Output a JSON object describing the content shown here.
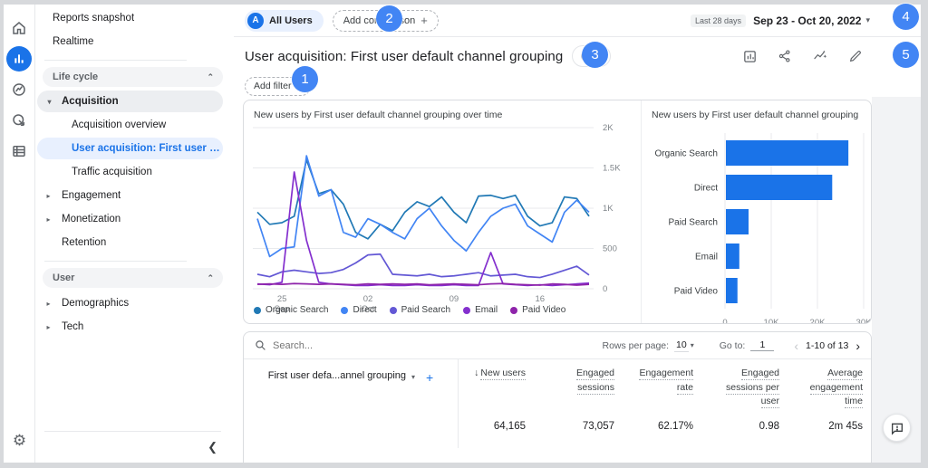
{
  "colors": {
    "accent": "#1a73e8",
    "badge": "#4285f4",
    "bar_fill": "#1a73e8",
    "grid": "#e8eaed",
    "axis_label": "#80868b",
    "series": {
      "Organic Search": "#2179b5",
      "Direct": "#4285f4",
      "Paid Search": "#6358d5",
      "Email": "#8430ce",
      "Paid Video": "#8e24aa"
    }
  },
  "icons": {
    "caret_down": "▾",
    "caret_right": "▸",
    "chevron_up": "⌃",
    "chevron_left": "‹",
    "chevron_right": "›",
    "collapse_left": "❮",
    "plus": "+",
    "sort_desc": "↓",
    "gear": "⚙",
    "feedback_mark": "!"
  },
  "rail": {
    "items": [
      {
        "name": "home",
        "active": false
      },
      {
        "name": "reports",
        "active": true
      },
      {
        "name": "explore",
        "active": false
      },
      {
        "name": "advertising",
        "active": false
      },
      {
        "name": "library",
        "active": false
      }
    ]
  },
  "sidebar": {
    "items": [
      {
        "type": "link",
        "label": "Reports snapshot"
      },
      {
        "type": "link",
        "label": "Realtime"
      },
      {
        "type": "divider"
      },
      {
        "type": "section",
        "label": "Life cycle"
      },
      {
        "type": "expanded",
        "label": "Acquisition"
      },
      {
        "type": "sub",
        "label": "Acquisition overview"
      },
      {
        "type": "selected",
        "label": "User acquisition: First user …"
      },
      {
        "type": "sub",
        "label": "Traffic acquisition"
      },
      {
        "type": "collapsed",
        "label": "Engagement"
      },
      {
        "type": "collapsed",
        "label": "Monetization"
      },
      {
        "type": "plain",
        "label": "Retention"
      },
      {
        "type": "divider"
      },
      {
        "type": "section",
        "label": "User"
      },
      {
        "type": "collapsed",
        "label": "Demographics"
      },
      {
        "type": "collapsed",
        "label": "Tech"
      }
    ]
  },
  "topbar": {
    "all_users": {
      "avatar_letter": "A",
      "label": "All Users"
    },
    "add_comparison_label": "Add comparison",
    "date_range_badge": "Last 28 days",
    "date_range": "Sep 23 - Oct 20, 2022"
  },
  "header": {
    "title": "User acquisition: First user default channel grouping",
    "add_filter_label": "Add filter"
  },
  "chart_data": [
    {
      "type": "line",
      "title": "New users by First user default channel grouping over time",
      "n_points": 28,
      "x_range_label": "Sep 23 - Oct 20, 2022",
      "x_tick_indices": [
        2,
        9,
        16,
        23
      ],
      "x_tick_labels": [
        [
          "25",
          "Sep"
        ],
        [
          "02",
          "Oct"
        ],
        [
          "09"
        ],
        [
          "16"
        ]
      ],
      "ylim": [
        0,
        2000
      ],
      "y_ticks": [
        0,
        500,
        1000,
        1500,
        2000
      ],
      "y_tick_labels": [
        "0",
        "500",
        "1K",
        "1.5K",
        "2K"
      ],
      "legend_position": "bottom",
      "series": [
        {
          "name": "Organic Search",
          "values": [
            950,
            800,
            820,
            900,
            1600,
            1180,
            1230,
            1050,
            700,
            620,
            800,
            720,
            950,
            1080,
            1020,
            1140,
            950,
            820,
            1150,
            1160,
            1120,
            1160,
            900,
            780,
            820,
            1140,
            1120,
            900
          ]
        },
        {
          "name": "Direct",
          "values": [
            870,
            400,
            500,
            520,
            1650,
            1150,
            1230,
            700,
            640,
            870,
            800,
            700,
            620,
            870,
            1000,
            780,
            600,
            470,
            700,
            900,
            1000,
            1050,
            780,
            680,
            580,
            950,
            1100,
            950
          ]
        },
        {
          "name": "Paid Search",
          "values": [
            180,
            150,
            210,
            230,
            210,
            190,
            200,
            240,
            320,
            420,
            430,
            180,
            170,
            160,
            180,
            150,
            160,
            180,
            200,
            160,
            170,
            180,
            150,
            140,
            180,
            230,
            280,
            170
          ]
        },
        {
          "name": "Email",
          "values": [
            60,
            50,
            80,
            1450,
            600,
            80,
            60,
            50,
            40,
            40,
            50,
            40,
            40,
            50,
            40,
            40,
            50,
            40,
            40,
            450,
            60,
            50,
            40,
            50,
            40,
            50,
            60,
            70
          ]
        },
        {
          "name": "Paid Video",
          "values": [
            55,
            60,
            55,
            65,
            60,
            55,
            60,
            55,
            50,
            60,
            55,
            60,
            55,
            60,
            50,
            55,
            60,
            55,
            50,
            60,
            65,
            55,
            50,
            45,
            60,
            55,
            45,
            55
          ]
        }
      ]
    },
    {
      "type": "bar",
      "title": "New users by First user default channel grouping",
      "orientation": "horizontal",
      "categories": [
        "Organic Search",
        "Direct",
        "Paid Search",
        "Email",
        "Paid Video"
      ],
      "values": [
        26500,
        23000,
        4900,
        2900,
        2500
      ],
      "xlim": [
        0,
        33000
      ],
      "x_ticks": [
        0,
        10000,
        20000,
        30000
      ],
      "x_tick_labels": [
        "0",
        "10K",
        "20K",
        "30K"
      ]
    }
  ],
  "table": {
    "search_placeholder": "Search...",
    "rows_per_page_label": "Rows per page:",
    "rows_per_page_value": "10",
    "goto_label": "Go to:",
    "goto_value": "1",
    "pagination_range": "1-10 of 13",
    "dimension_header": "First user defa...annel grouping",
    "columns": [
      {
        "label": "New users",
        "sorted": "desc"
      },
      {
        "label": "Engaged sessions"
      },
      {
        "label": "Engagement rate"
      },
      {
        "label": "Engaged sessions per user"
      },
      {
        "label": "Average engagement time"
      }
    ],
    "totals": [
      "64,165",
      "73,057",
      "62.17%",
      "0.98",
      "2m 45s"
    ]
  },
  "annotations": {
    "steps": [
      "1",
      "2",
      "3",
      "4",
      "5"
    ]
  }
}
